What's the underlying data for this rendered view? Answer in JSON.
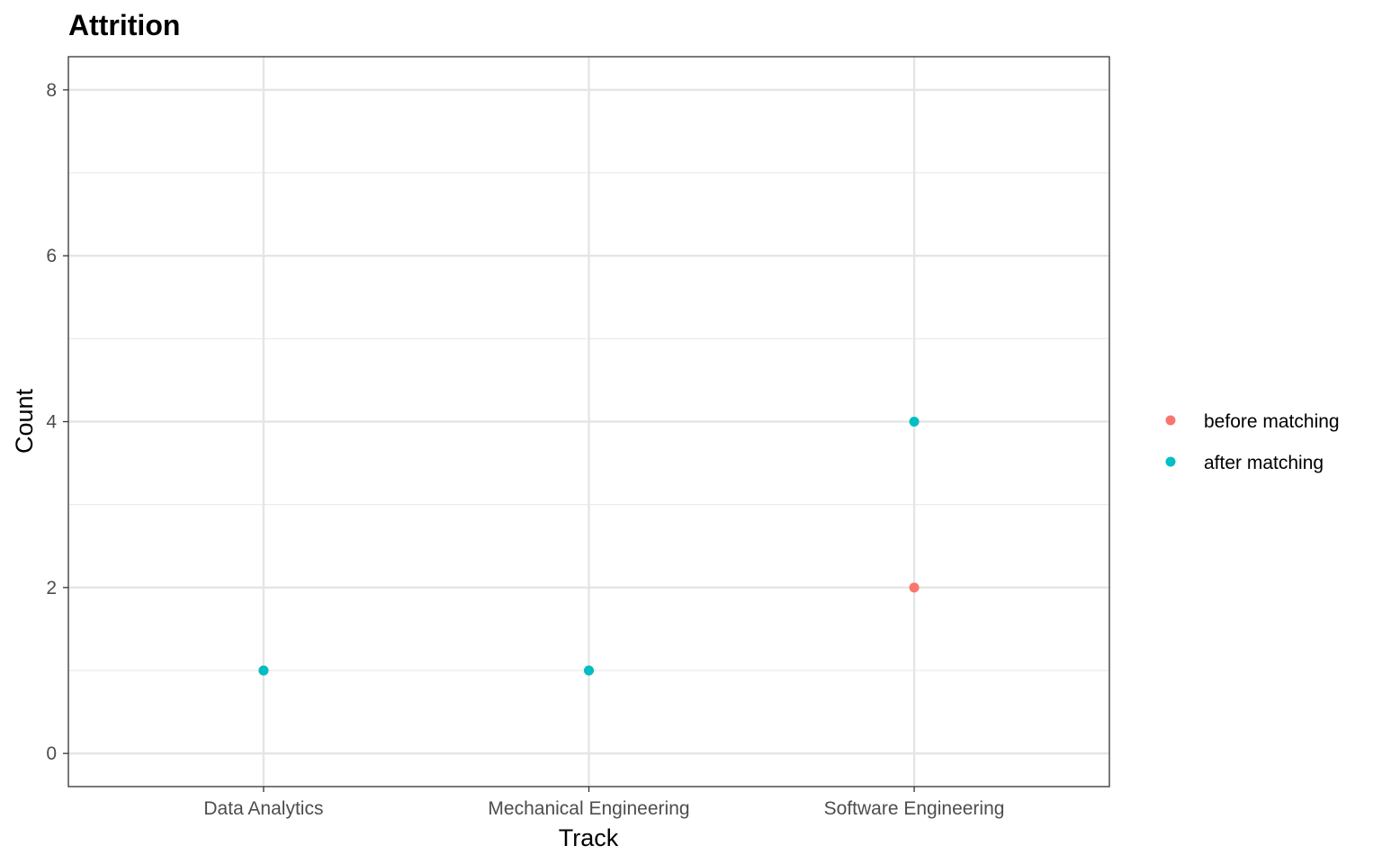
{
  "chart_data": {
    "type": "scatter",
    "title": "Attrition",
    "xlabel": "Track",
    "ylabel": "Count",
    "categories": [
      "Data Analytics",
      "Mechanical Engineering",
      "Software Engineering"
    ],
    "yticks": [
      0,
      2,
      4,
      6,
      8
    ],
    "ylim": [
      -0.4,
      8.4
    ],
    "grid": true,
    "legend_position": "right",
    "series": [
      {
        "name": "before matching",
        "color": "#F8766D",
        "points": [
          {
            "category": "Data Analytics",
            "value": 1
          },
          {
            "category": "Mechanical Engineering",
            "value": 1
          },
          {
            "category": "Software Engineering",
            "value": 2
          }
        ]
      },
      {
        "name": "after matching",
        "color": "#00BFC4",
        "points": [
          {
            "category": "Data Analytics",
            "value": 1
          },
          {
            "category": "Mechanical Engineering",
            "value": 1
          },
          {
            "category": "Software Engineering",
            "value": 4
          }
        ]
      }
    ]
  }
}
